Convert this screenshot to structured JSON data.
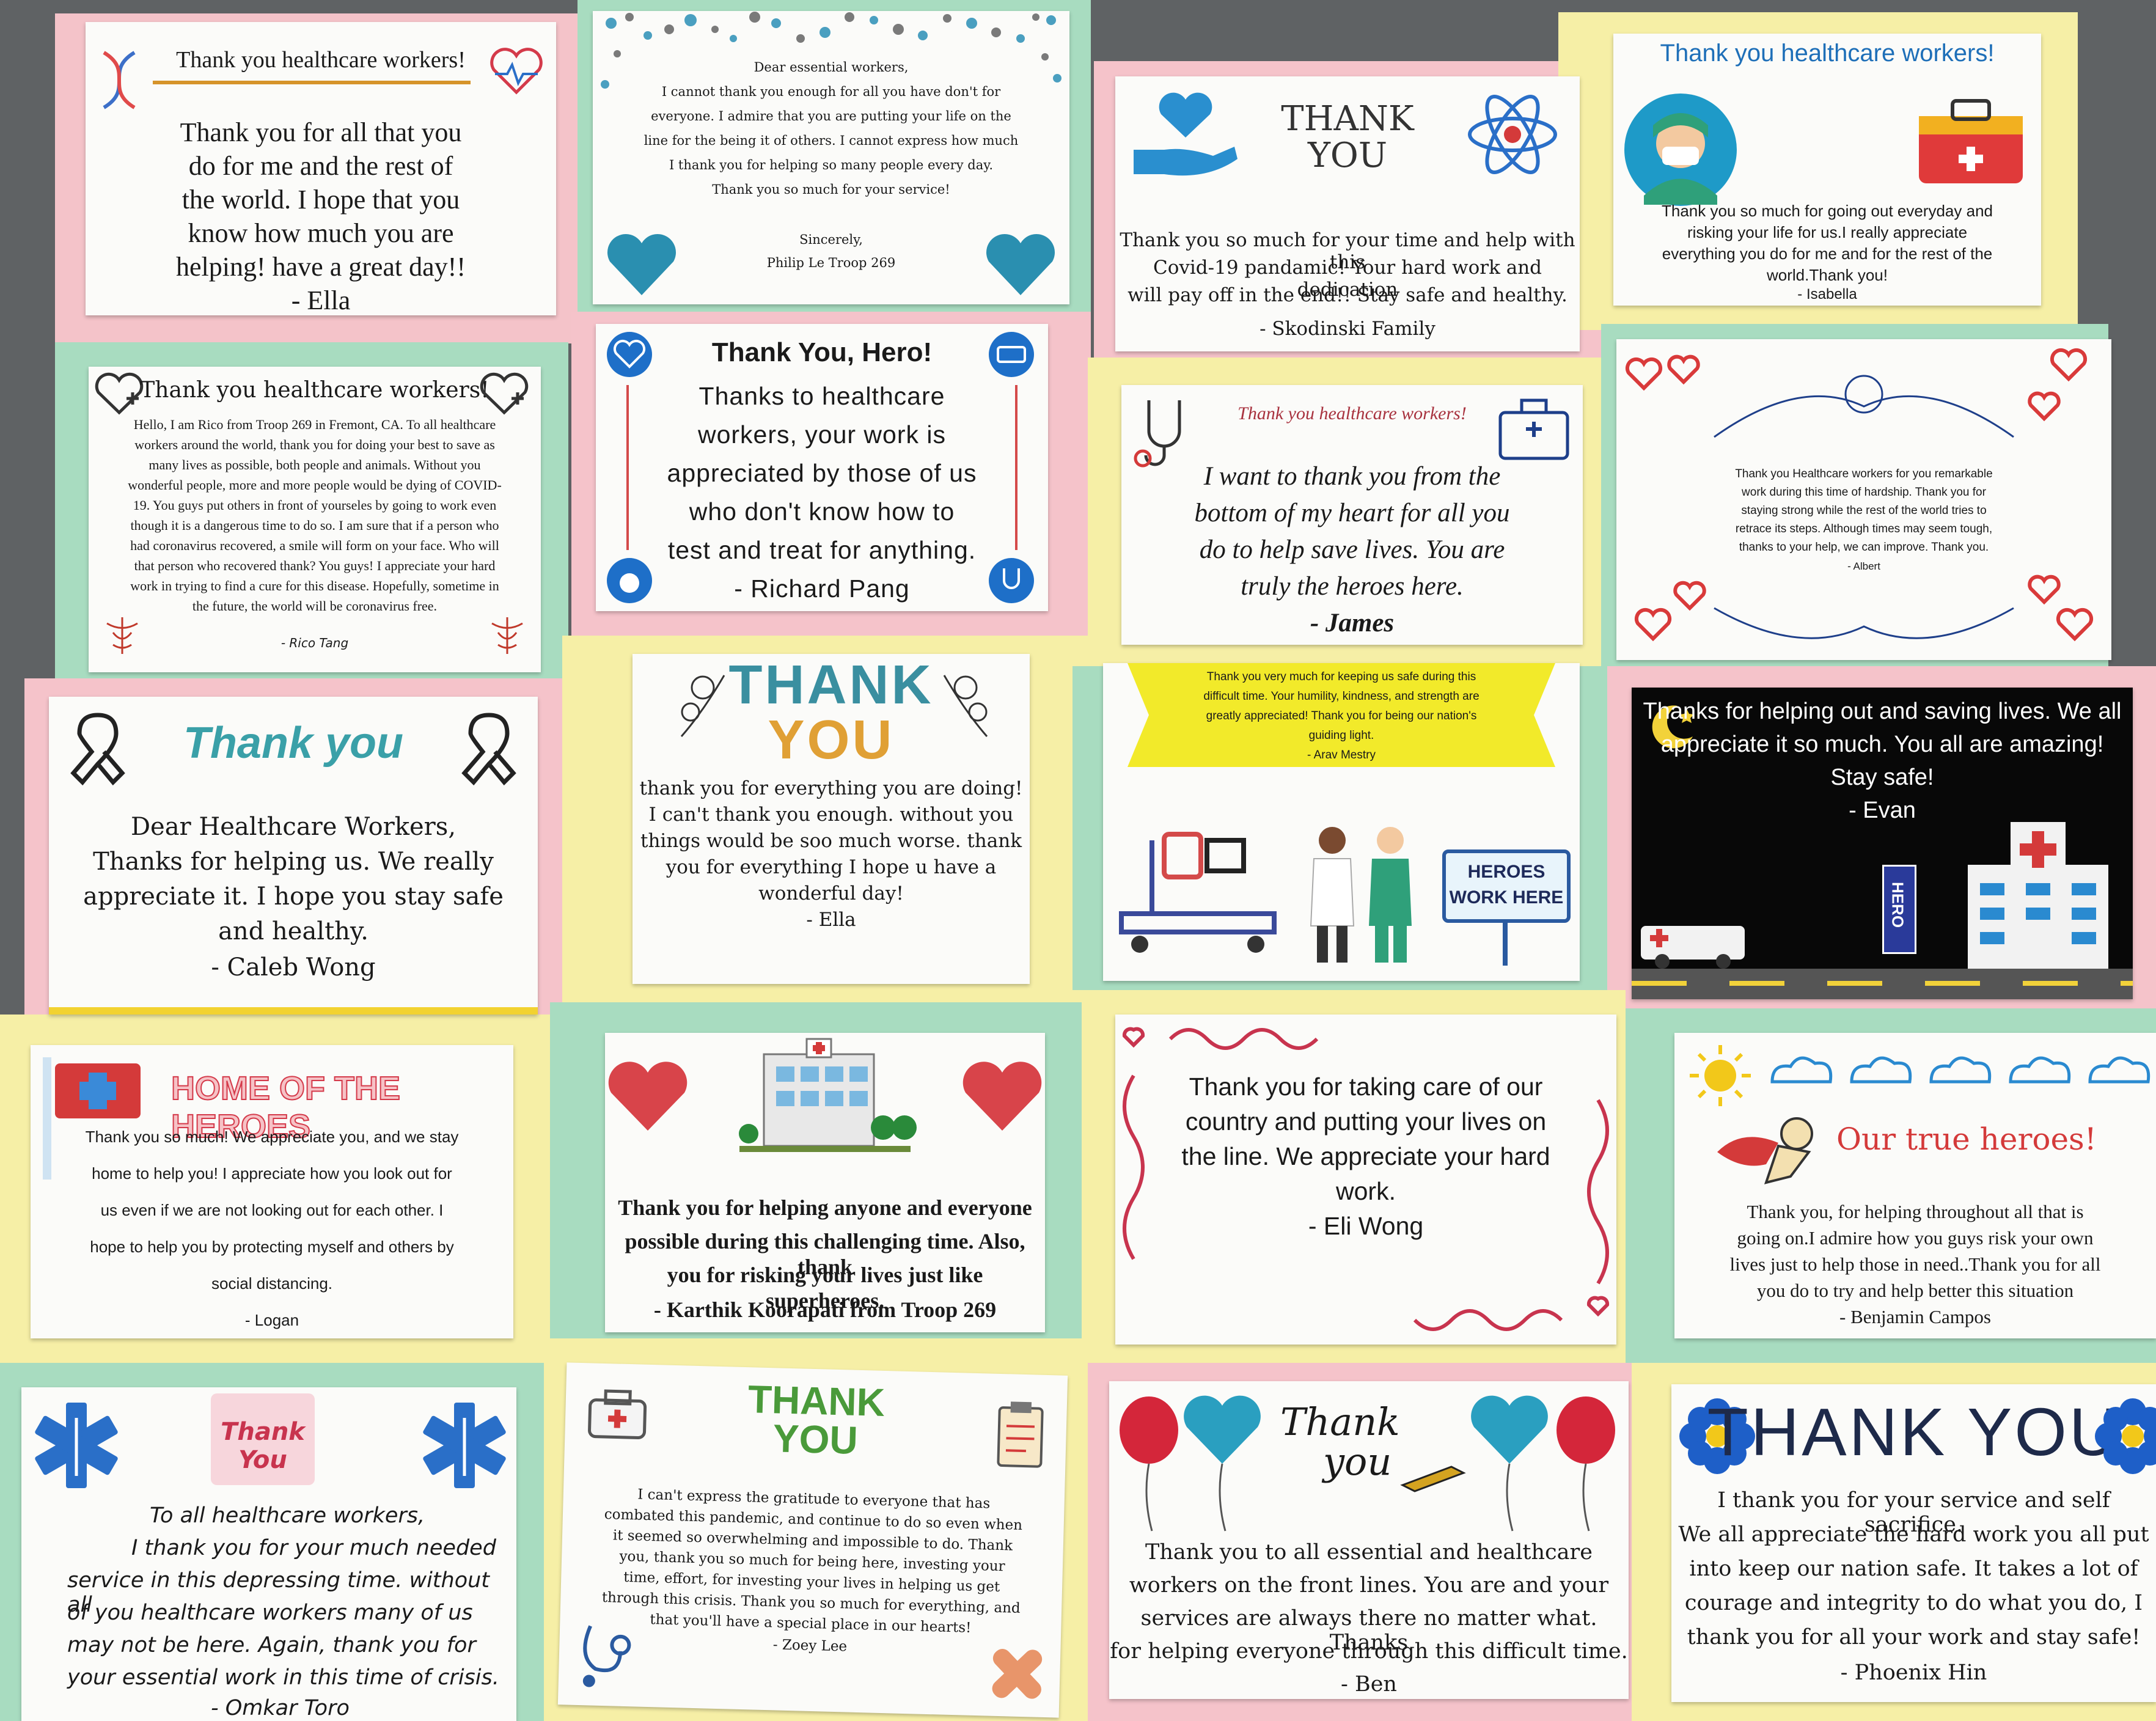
{
  "palette": {
    "pink": "#f5c6cb",
    "yellow": "#f7f0a8",
    "green": "#a9dcc1",
    "red": "#d22b3a",
    "teal": "#1e8fb8",
    "blue": "#2b6fc4"
  },
  "cards": {
    "c1": {
      "title": "Thank you healthcare workers!",
      "body": [
        "Thank you for all that you",
        "do for me and the rest of",
        "the world. I hope that you",
        "know how much you are",
        "helping! have a great day!!"
      ],
      "sign": "- Ella"
    },
    "c2": {
      "greeting": "Dear essential workers,",
      "body": [
        "I cannot thank you enough for all you have don't for",
        "everyone. I admire that you are putting your life on the",
        "line for the being it of others. I cannot express how much",
        "I thank you for helping so many people every day.",
        "Thank you so much for your service!"
      ],
      "closing": "Sincerely,",
      "sign": "Philip Le Troop 269"
    },
    "c3": {
      "logo": "THANK YOU",
      "body": [
        "Thank you so much for your time and help with this",
        "Covid-19 pandamic! Your hard work and dedication",
        "will pay off in the end!! Stay safe and healthy."
      ],
      "sign": "- Skodinski Family"
    },
    "c4": {
      "title": "Thank you healthcare workers!",
      "body": [
        "Thank you so much for going out everyday and",
        "risking your life for us.I really appreciate",
        "everything you do for me and for the rest of the",
        "world.Thank you!"
      ],
      "sign": "- Isabella"
    },
    "c5": {
      "title": "Thank you healthcare workers!",
      "body": [
        "Hello, I am Rico from Troop 269 in Fremont, CA. To all healthcare",
        "workers around the world, thank you for doing your best to save as",
        "many lives as possible, both people and animals. Without you",
        "wonderful people, more and more people would be dying of COVID-",
        "19. You guys put others in front of yourseles by going to work even",
        "though it is a dangerous time to do so. I am sure that if a person who",
        "had coronavirus recovered, a smile will form on your face. Who will",
        "that person who recovered thank? You guys! I appreciate your hard",
        "work in trying to find a cure for this disease. Hopefully, sometime in",
        "the future, the world will be coronavirus free."
      ],
      "sign": "- Rico Tang"
    },
    "c6": {
      "title": "Thank You, Hero!",
      "body": [
        "Thanks to healthcare",
        "workers, your work is",
        "appreciated by those of us",
        "who don't know how to",
        "test and treat for anything."
      ],
      "sign": "- Richard Pang"
    },
    "c7": {
      "title": "Thank you healthcare workers!",
      "body": [
        "I want to thank you from the",
        "bottom of my heart for all you",
        "do to help save lives. You are",
        "truly the heroes here."
      ],
      "sign": "- James"
    },
    "c8": {
      "body": [
        "Thank you Healthcare workers for you remarkable",
        "work during this time of hardship. Thank you for",
        "staying strong while the rest of the world tries to",
        "retrace its steps. Although times may seem tough,",
        "thanks to your help, we can improve. Thank you."
      ],
      "sign": "- Albert"
    },
    "c9": {
      "title": "Thank you",
      "body": [
        "Dear Healthcare Workers,",
        "Thanks for helping us. We really",
        "appreciate it. I hope you stay safe",
        "and healthy."
      ],
      "sign": "- Caleb Wong"
    },
    "c10": {
      "logo_1": "THANK",
      "logo_2": "YOU",
      "body": [
        "thank you for everything you are doing!",
        "I can't thank you enough. without you",
        "things would be soo much worse. thank",
        "you for everything I hope u have a",
        "wonderful day!"
      ],
      "sign": "- Ella"
    },
    "c11": {
      "banner": [
        "Thank you very much for keeping us safe during this",
        "difficult time. Your humility, kindness, and strength are",
        "greatly appreciated! Thank you for being our nation's",
        "guiding light."
      ],
      "sign": "- Arav Mestry",
      "sign_board": [
        "HEROES",
        "WORK HERE"
      ]
    },
    "c12": {
      "body": [
        "Thanks for helping out and saving lives. We all",
        "appreciate it so much. You all are amazing!",
        "Stay safe!"
      ],
      "sign": "- Evan",
      "hero_sign": "HERO"
    },
    "c13": {
      "title": "HOME OF THE HEROES",
      "body": [
        "Thank you so much! We appreciate you, and we stay",
        "home to help you! I appreciate how you look out for",
        "us even if we are not looking out for each other. I",
        "hope to help you by protecting myself and others by",
        "social distancing."
      ],
      "sign": "- Logan"
    },
    "c14": {
      "body": [
        "Thank you for helping anyone and everyone",
        "possible during this challenging time. Also, thank",
        "you for risking your lives just like superheroes."
      ],
      "sign": "- Karthik Koorapati from Troop 269"
    },
    "c15": {
      "body": [
        "Thank you for taking care of our",
        "country and putting your lives on",
        "the line. We appreciate your hard",
        "work."
      ],
      "sign": "- Eli Wong"
    },
    "c16": {
      "title": "Our true heroes!",
      "body": [
        "Thank you, for helping throughout all that is",
        "going on.I admire how you guys risk your own",
        "lives just to help those in need..Thank you for all",
        "you do to try and help better this situation"
      ],
      "sign": "- Benjamin Campos"
    },
    "c17": {
      "logo": "Thank You",
      "body": [
        "To all healthcare workers,",
        "I thank you for your much needed",
        "service in this depressing time. without all",
        "of you healthcare workers many of us",
        "may not be here. Again, thank you for",
        "your essential work in this time of crisis."
      ],
      "sign": "- Omkar Toro"
    },
    "c18": {
      "logo_1": "THANK",
      "logo_2": "YOU",
      "body": [
        "I can't express the gratitude to everyone that has",
        "combated this pandemic, and continue to do so even when",
        "it seemed so overwhelming and impossible to do. Thank",
        "you, thank you so much for being here, investing your",
        "time, effort, for investing your lives in helping us get",
        "through this crisis. Thank you so much for everything, and",
        "that you'll have a special place in our hearts!"
      ],
      "sign": "- Zoey Lee"
    },
    "c19": {
      "logo_1": "Thank",
      "logo_2": "you",
      "body": [
        "Thank you to all essential and healthcare",
        "workers on the front lines. You are and your",
        "services are always there no matter what. Thanks",
        "for helping everyone through this difficult time."
      ],
      "sign": "- Ben"
    },
    "c20": {
      "logo": "THANK YOU",
      "body": [
        "I thank you for your service and self sacrifice.",
        "We all appreciate the hard work you all put",
        "into keep our nation safe. It takes a lot of",
        "courage and integrity to do what you do, I",
        "thank you for all your work and stay safe!"
      ],
      "sign": "- Phoenix Hin"
    }
  }
}
